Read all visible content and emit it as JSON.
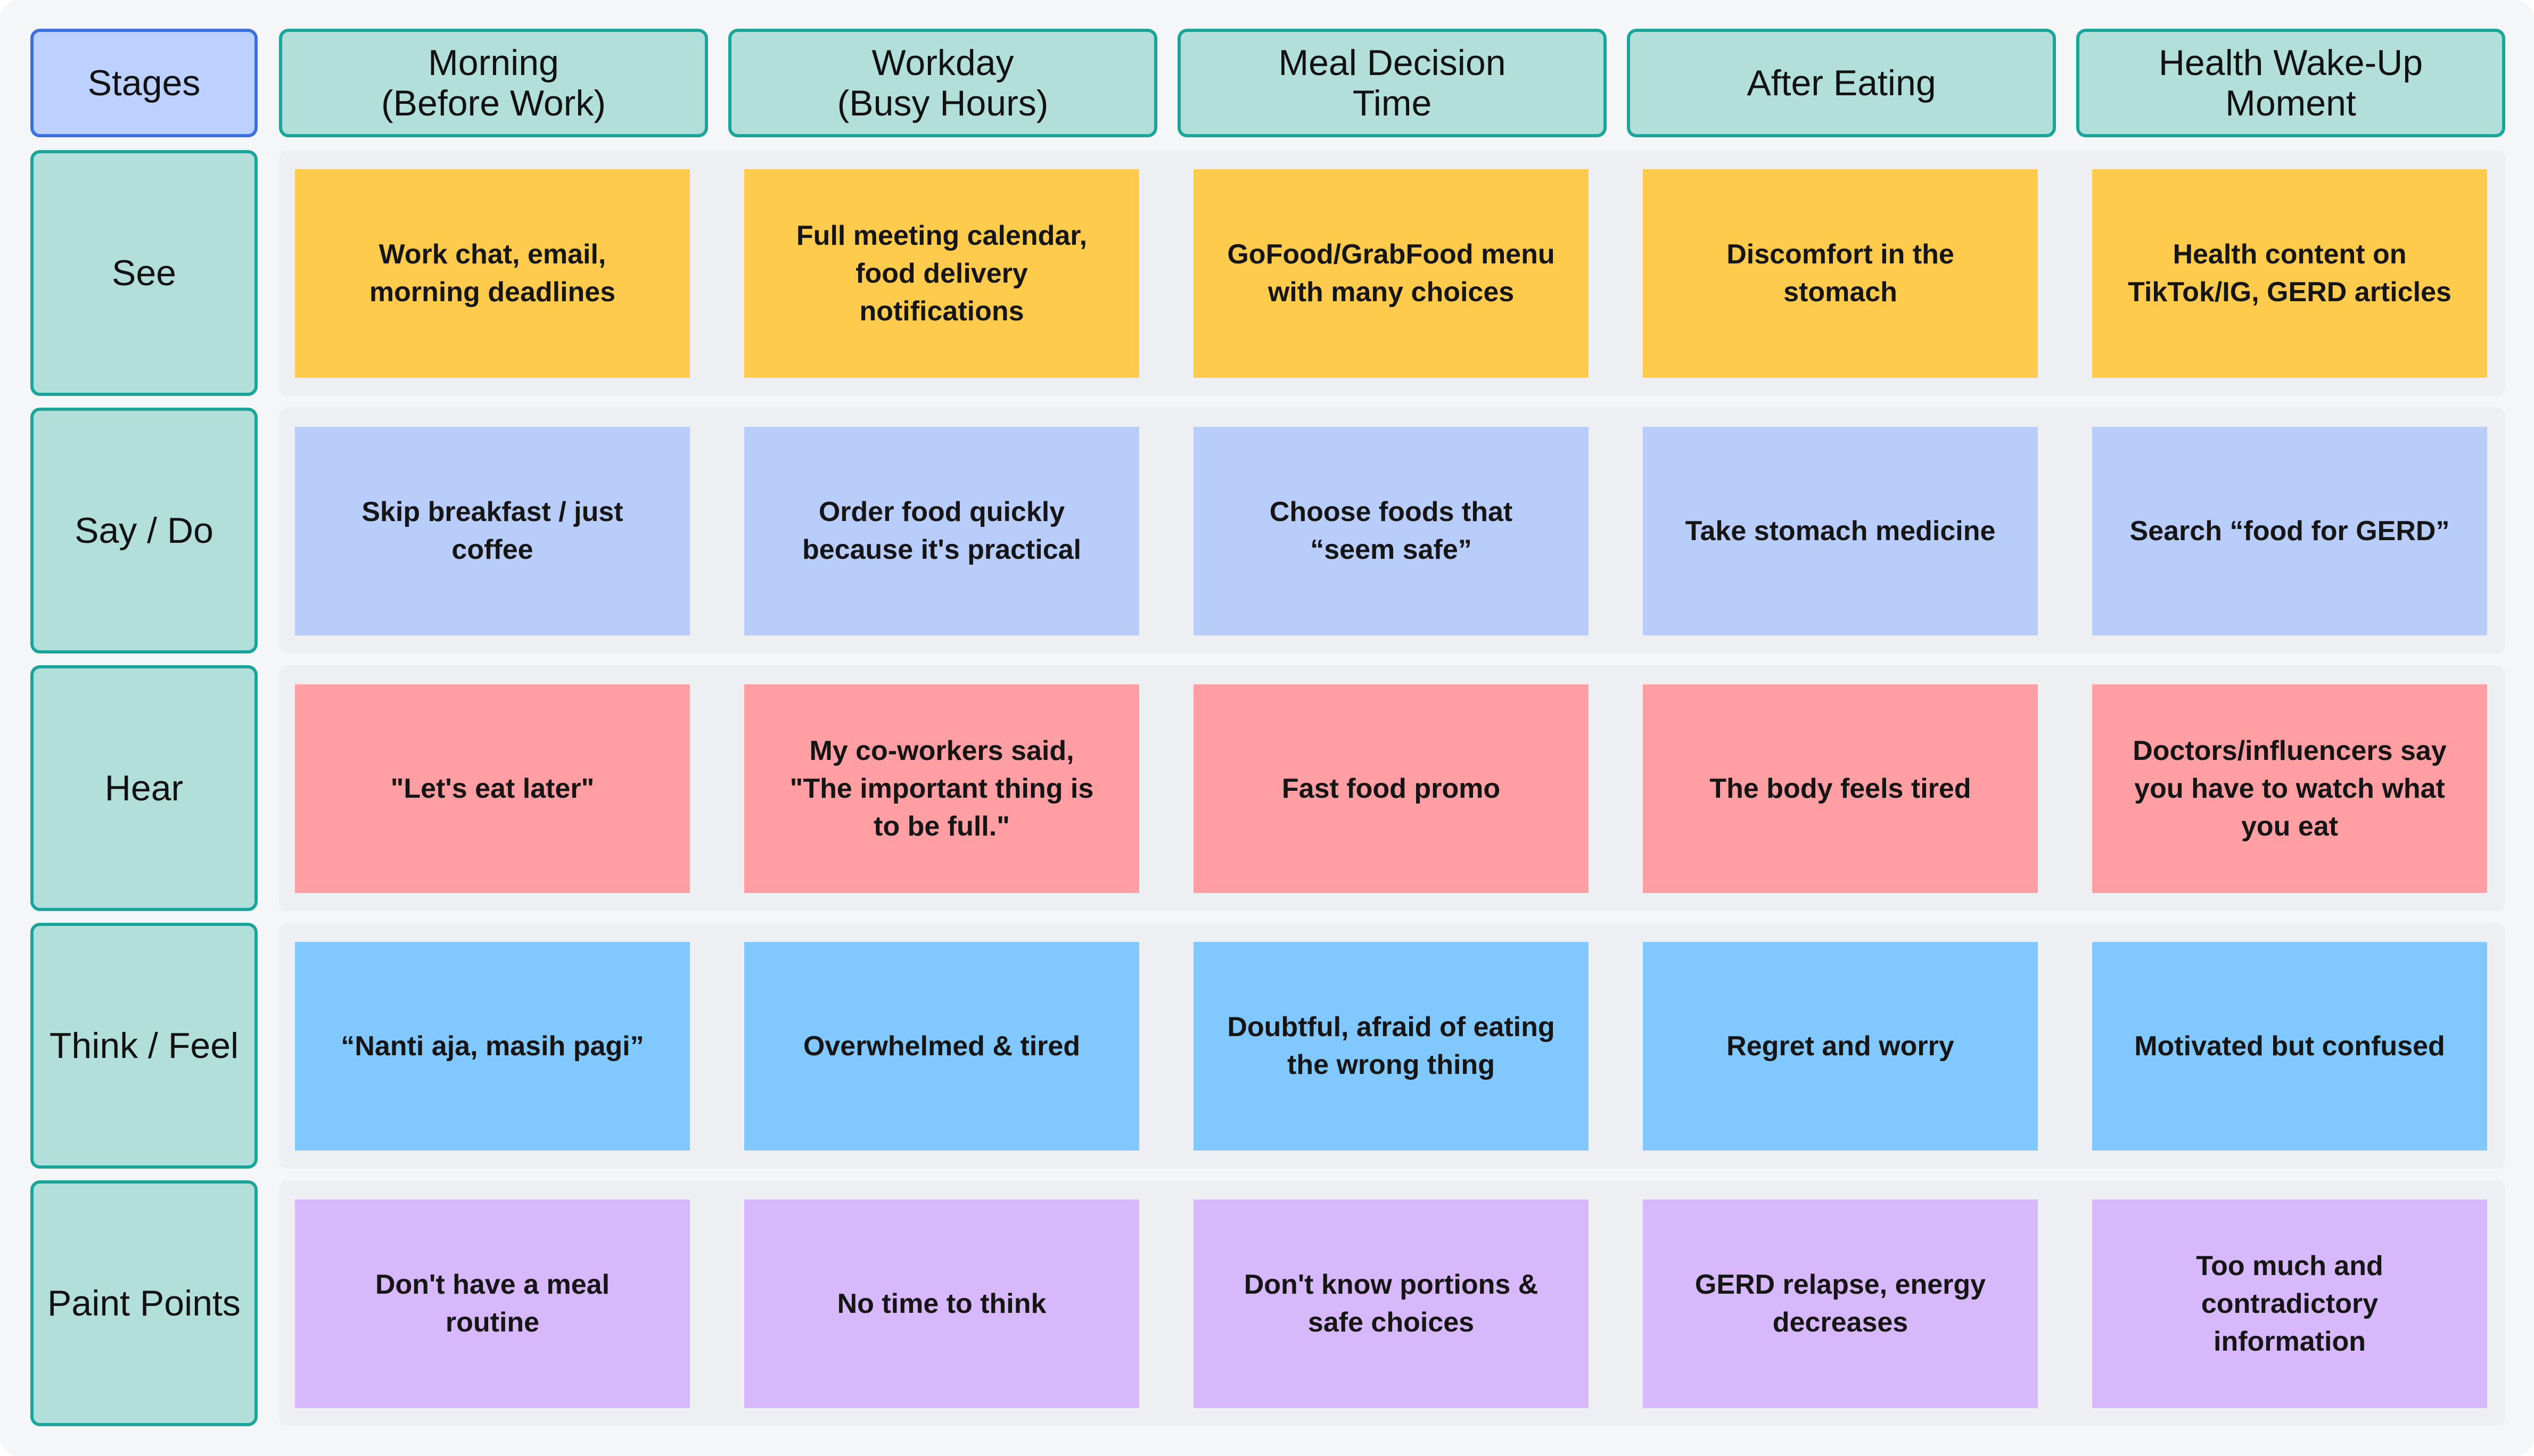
{
  "header": {
    "stages_label": "Stages",
    "columns": [
      "Morning\n(Before Work)",
      "Workday\n(Busy Hours)",
      "Meal Decision\nTime",
      "After Eating",
      "Health Wake-Up\nMoment"
    ]
  },
  "rows": [
    {
      "label": "See",
      "color": "#ffcb4d",
      "cells": [
        "Work chat, email, morning deadlines",
        "Full meeting calendar, food delivery notifications",
        "GoFood/GrabFood menu with many choices",
        "Discomfort in the stomach",
        "Health content on TikTok/IG, GERD articles"
      ]
    },
    {
      "label": "Say / Do",
      "color": "#b8cdfa",
      "cells": [
        "Skip breakfast / just coffee",
        "Order food quickly because it's practical",
        "Choose foods that “seem safe”",
        "Take stomach medicine",
        "Search “food for GERD”"
      ]
    },
    {
      "label": "Hear",
      "color": "#ff9ea3",
      "cells": [
        "\"Let's eat later\"",
        "My co-workers said, \"The important thing is to be full.\"",
        "Fast food promo",
        "The body feels tired",
        "Doctors/influencers say you have to watch what you eat"
      ]
    },
    {
      "label": "Think / Feel",
      "color": "#80c8fd",
      "cells": [
        "“Nanti aja, masih pagi”",
        "Overwhelmed & tired",
        "Doubtful, afraid of eating the wrong thing",
        "Regret and worry",
        "Motivated but confused"
      ]
    },
    {
      "label": "Paint Points",
      "color": "#d7b9fb",
      "cells": [
        "Don't have a meal routine",
        "No time to think",
        "Don't know portions & safe choices",
        "GERD relapse, energy decreases",
        "Too much and contradictory information"
      ]
    }
  ]
}
